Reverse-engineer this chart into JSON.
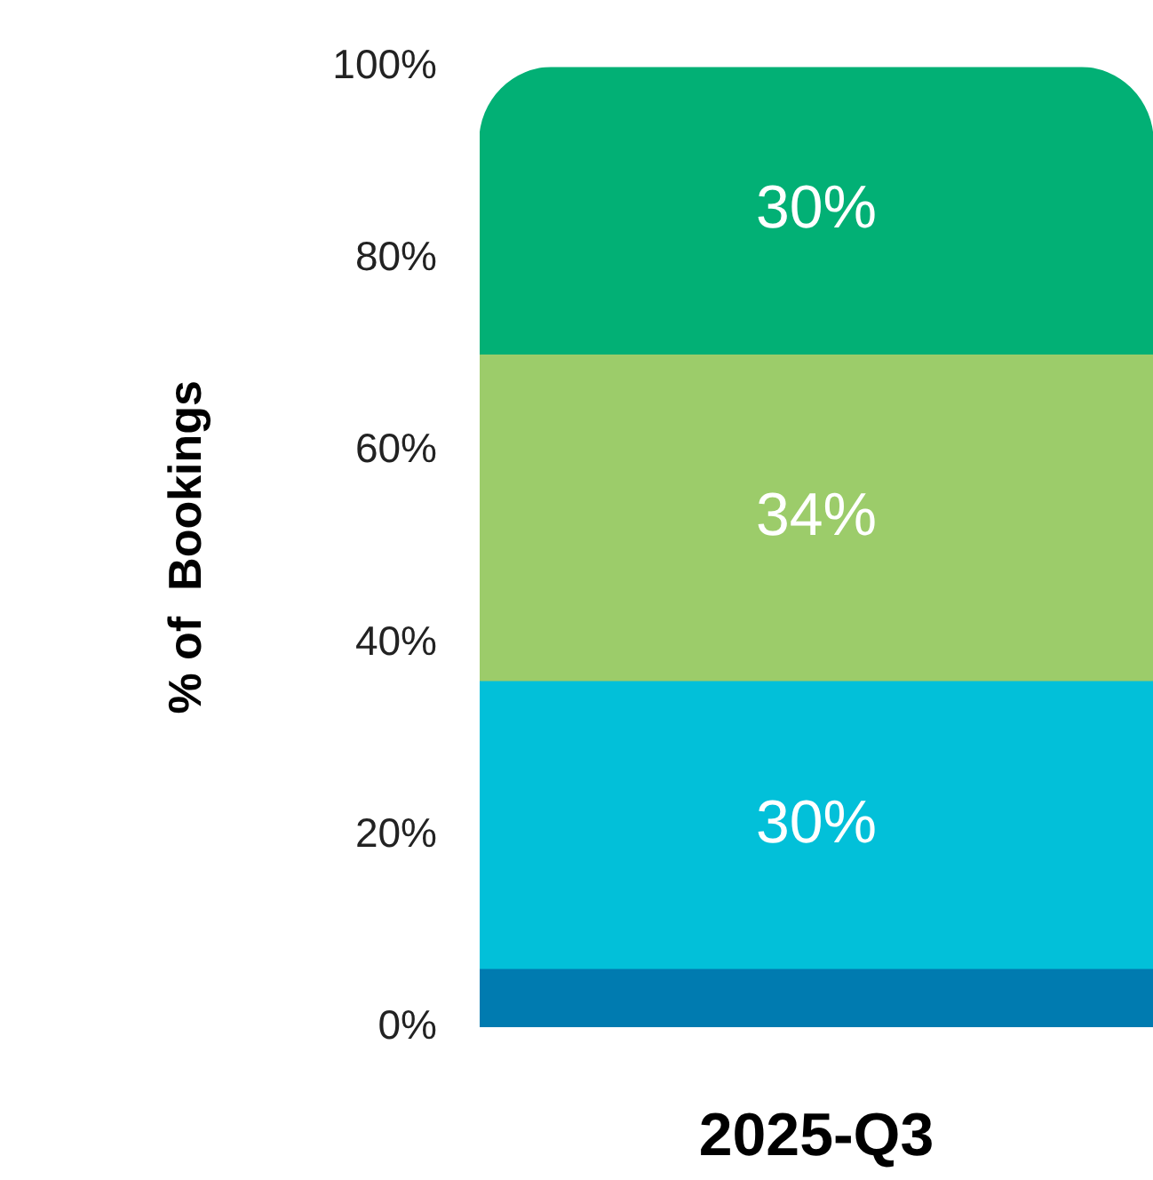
{
  "chart_data": {
    "type": "bar",
    "stacked": true,
    "ylabel": "% of  Bookings",
    "categories": [
      "2025-Q3"
    ],
    "series": [
      {
        "color": "#007bb0",
        "values": [
          6
        ],
        "value_labels": [
          null
        ]
      },
      {
        "color": "#02c0d9",
        "values": [
          30
        ],
        "value_labels": [
          "30%"
        ]
      },
      {
        "color": "#9ccc6a",
        "values": [
          34
        ],
        "value_labels": [
          "34%"
        ]
      },
      {
        "color": "#02b075",
        "values": [
          30
        ],
        "value_labels": [
          "30%"
        ]
      }
    ],
    "ylim": [
      0,
      100
    ],
    "yticks": [
      {
        "value": 0,
        "label": "0%"
      },
      {
        "value": 20,
        "label": "20%"
      },
      {
        "value": 40,
        "label": "40%"
      },
      {
        "value": 60,
        "label": "60%"
      },
      {
        "value": 80,
        "label": "80%"
      },
      {
        "value": 100,
        "label": "100%"
      }
    ],
    "legend": false
  }
}
